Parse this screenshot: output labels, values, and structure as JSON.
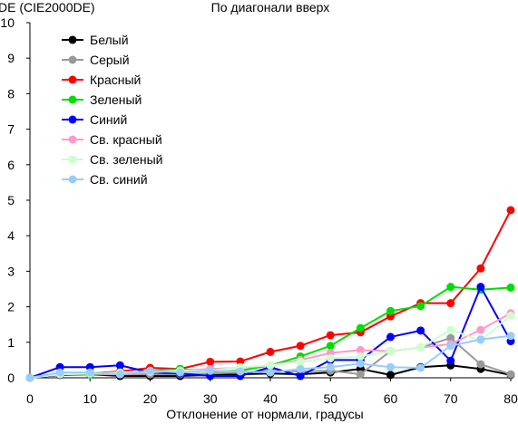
{
  "chart_data": {
    "type": "line",
    "title": "По диагонали вверх",
    "xlabel": "Отклонение от нормали, градусы",
    "ylabel": "DE (CIE2000DE)",
    "xlim": [
      0,
      80
    ],
    "ylim": [
      0,
      10
    ],
    "x_ticks": [
      0,
      10,
      20,
      30,
      40,
      50,
      60,
      70,
      80
    ],
    "y_ticks": [
      0,
      1,
      2,
      3,
      4,
      5,
      6,
      7,
      8,
      9,
      10
    ],
    "grid": false,
    "legend_position": "top-left",
    "x": [
      0,
      5,
      10,
      15,
      20,
      25,
      30,
      35,
      40,
      45,
      50,
      55,
      60,
      65,
      70,
      75,
      80
    ],
    "series": [
      {
        "name": "Белый",
        "color": "#000000",
        "values": [
          0,
          0.08,
          0.1,
          0.05,
          0.05,
          0.05,
          0.08,
          0.1,
          0.12,
          0.1,
          0.15,
          0.25,
          0.08,
          0.3,
          0.35,
          0.25,
          0.08
        ]
      },
      {
        "name": "Серый",
        "color": "#999999",
        "values": [
          0,
          0.1,
          0.1,
          0.1,
          0.1,
          0.1,
          0.12,
          0.15,
          0.2,
          0.18,
          0.2,
          0.1,
          0.75,
          0.85,
          1.12,
          0.38,
          0.1
        ]
      },
      {
        "name": "Красный",
        "color": "#ff0000",
        "values": [
          0,
          0.12,
          0.12,
          0.18,
          0.28,
          0.25,
          0.45,
          0.46,
          0.73,
          0.9,
          1.2,
          1.28,
          1.73,
          2.1,
          2.1,
          3.08,
          4.72
        ]
      },
      {
        "name": "Зеленый",
        "color": "#00dd00",
        "values": [
          0,
          0.12,
          0.1,
          0.12,
          0.2,
          0.25,
          0.18,
          0.2,
          0.35,
          0.6,
          0.9,
          1.4,
          1.88,
          2.02,
          2.56,
          2.48,
          2.54
        ]
      },
      {
        "name": "Синий",
        "color": "#0000ff",
        "values": [
          0,
          0.3,
          0.3,
          0.35,
          0.15,
          0.12,
          0.05,
          0.05,
          0.3,
          0.05,
          0.5,
          0.5,
          1.15,
          1.33,
          0.48,
          2.56,
          1.03
        ]
      },
      {
        "name": "Св. красный",
        "color": "#ff99cc",
        "values": [
          0,
          0.1,
          0.12,
          0.1,
          0.15,
          0.2,
          0.25,
          0.28,
          0.35,
          0.5,
          0.7,
          0.78,
          0.75,
          0.85,
          0.95,
          1.35,
          1.82
        ]
      },
      {
        "name": "Св. зеленый",
        "color": "#ccffcc",
        "values": [
          0,
          0.1,
          0.12,
          0.15,
          0.18,
          0.2,
          0.2,
          0.3,
          0.35,
          0.45,
          0.55,
          0.6,
          0.75,
          0.85,
          1.35,
          1.05,
          1.75
        ]
      },
      {
        "name": "Св. синий",
        "color": "#99ccff",
        "values": [
          0,
          0.15,
          0.15,
          0.1,
          0.2,
          0.15,
          0.2,
          0.18,
          0.15,
          0.25,
          0.3,
          0.4,
          0.3,
          0.28,
          0.9,
          1.08,
          1.18
        ]
      }
    ]
  }
}
